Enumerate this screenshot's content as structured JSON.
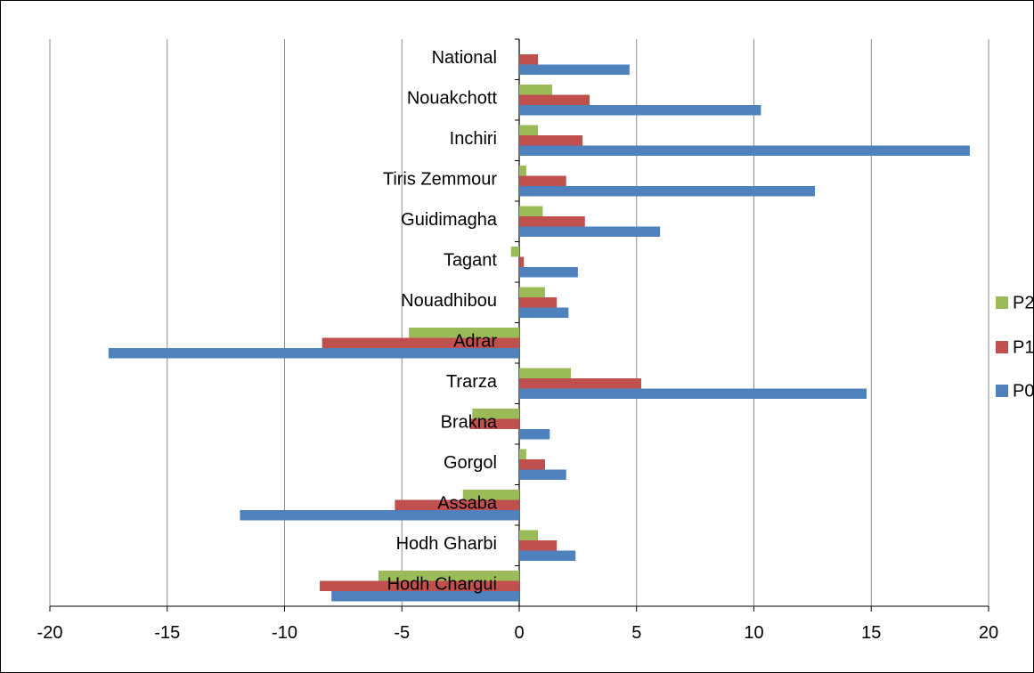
{
  "chart_data": {
    "type": "bar",
    "orientation": "horizontal",
    "categories": [
      "National",
      "Nouakchott",
      "Inchiri",
      "Tiris Zemmour",
      "Guidimagha",
      "Tagant",
      "Nouadhibou",
      "Adrar",
      "Trarza",
      "Brakna",
      "Gorgol",
      "Assaba",
      "Hodh Gharbi",
      "Hodh Chargui"
    ],
    "series": [
      {
        "name": "P2",
        "color": "#9BBB59",
        "values": [
          0.0,
          1.4,
          0.8,
          0.3,
          1.0,
          -0.35,
          1.1,
          -4.7,
          2.2,
          -2.0,
          0.3,
          -2.4,
          0.8,
          -6.0
        ]
      },
      {
        "name": "P1",
        "color": "#C0504D",
        "values": [
          0.8,
          3.0,
          2.7,
          2.0,
          2.8,
          0.2,
          1.6,
          -8.4,
          5.2,
          -2.1,
          1.1,
          -5.3,
          1.6,
          -8.5
        ]
      },
      {
        "name": "P0",
        "color": "#4F81BD",
        "values": [
          4.7,
          10.3,
          19.2,
          12.6,
          6.0,
          2.5,
          2.1,
          -17.5,
          14.8,
          1.3,
          2.0,
          -11.9,
          2.4,
          -8.0
        ]
      }
    ],
    "xlim": [
      -20,
      20
    ],
    "xticks": [
      "-20",
      "-15",
      "-10",
      "-5",
      "0",
      "5",
      "10",
      "15",
      "20"
    ],
    "grid": "vertical",
    "legend": "right",
    "title": "",
    "xlabel": "",
    "ylabel": ""
  }
}
